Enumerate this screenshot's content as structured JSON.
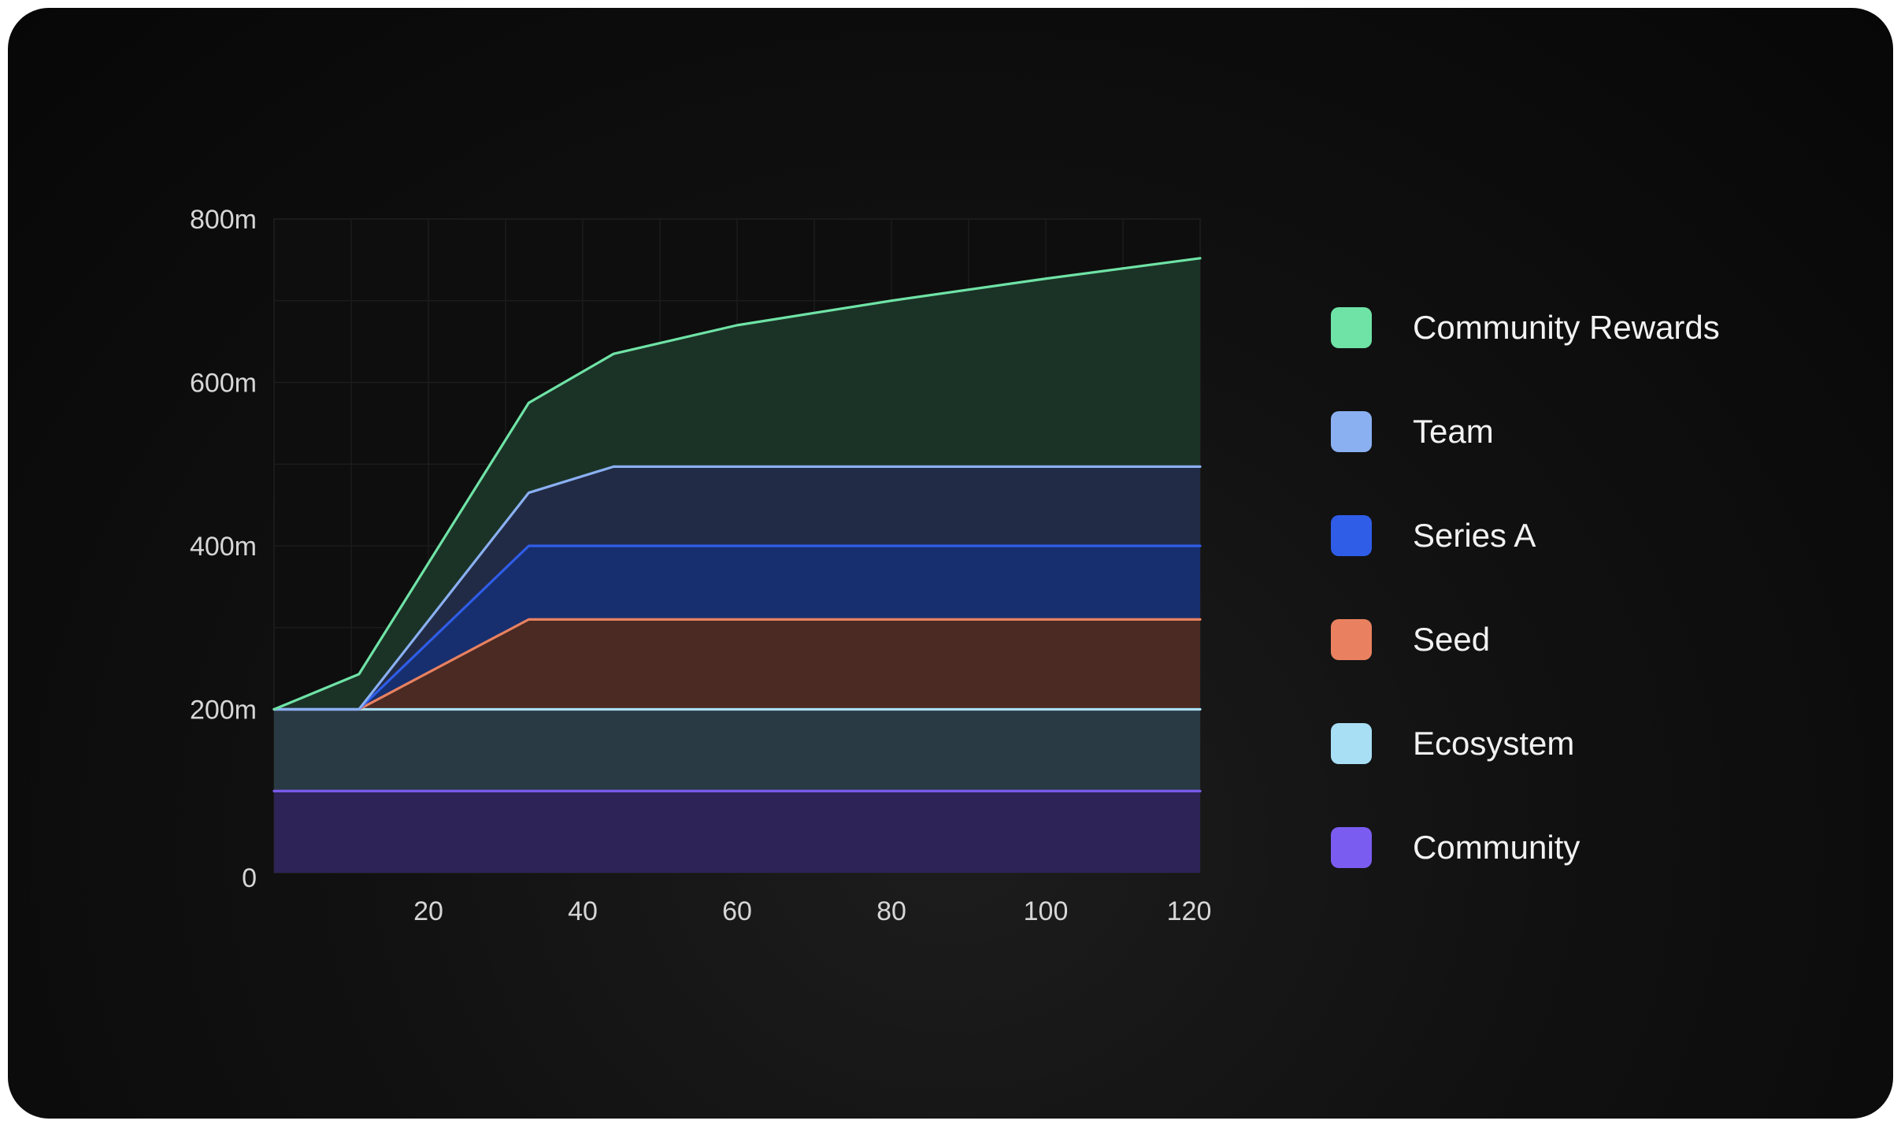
{
  "chart_data": {
    "type": "area",
    "stacked": true,
    "x_ticks": [
      20,
      40,
      60,
      80,
      100,
      120
    ],
    "y_ticks": [
      "0",
      "200m",
      "400m",
      "600m",
      "800m"
    ],
    "xlim": [
      0,
      120
    ],
    "ylim": [
      0,
      800
    ],
    "y_unit": "m",
    "grid": true,
    "legend_position": "right",
    "series": [
      {
        "name": "Community",
        "color": "#7b5cf0",
        "fill": "#2d2356",
        "points": [
          [
            0,
            100
          ],
          [
            120,
            100
          ]
        ]
      },
      {
        "name": "Ecosystem",
        "color": "#a9dff5",
        "fill": "#2a3a44",
        "points": [
          [
            0,
            200
          ],
          [
            120,
            200
          ]
        ]
      },
      {
        "name": "Seed",
        "color": "#e98160",
        "fill": "#4a2a23",
        "points": [
          [
            0,
            200
          ],
          [
            11,
            200
          ],
          [
            33,
            310
          ],
          [
            120,
            310
          ]
        ]
      },
      {
        "name": "Series A",
        "color": "#2f5de8",
        "fill": "#172f6e",
        "points": [
          [
            0,
            200
          ],
          [
            11,
            200
          ],
          [
            33,
            400
          ],
          [
            120,
            400
          ]
        ]
      },
      {
        "name": "Team",
        "color": "#8ab0f2",
        "fill": "#222b45",
        "points": [
          [
            0,
            200
          ],
          [
            11,
            200
          ],
          [
            33,
            465
          ],
          [
            44,
            497
          ],
          [
            120,
            497
          ]
        ]
      },
      {
        "name": "Community Rewards",
        "color": "#6fe3a6",
        "fill": "#1b3327",
        "points": [
          [
            0,
            200
          ],
          [
            11,
            243
          ],
          [
            33,
            575
          ],
          [
            44,
            635
          ],
          [
            60,
            670
          ],
          [
            80,
            700
          ],
          [
            100,
            727
          ],
          [
            120,
            752
          ]
        ]
      }
    ]
  },
  "legend": {
    "items": [
      {
        "label": "Community Rewards",
        "color": "#6fe3a6"
      },
      {
        "label": "Team",
        "color": "#8ab0f2"
      },
      {
        "label": "Series A",
        "color": "#2f5de8"
      },
      {
        "label": "Seed",
        "color": "#e98160"
      },
      {
        "label": "Ecosystem",
        "color": "#a9dff5"
      },
      {
        "label": "Community",
        "color": "#7b5cf0"
      }
    ]
  }
}
